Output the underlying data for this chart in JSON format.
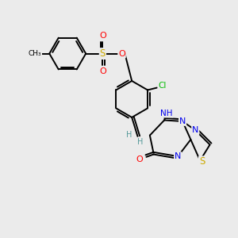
{
  "bg_color": "#ebebeb",
  "lw": 1.4,
  "atom_colors": {
    "O": "#ff0000",
    "S": "#ccaa00",
    "N": "#0000ee",
    "Cl": "#00bb00",
    "C": "#000000",
    "H": "#559999"
  }
}
